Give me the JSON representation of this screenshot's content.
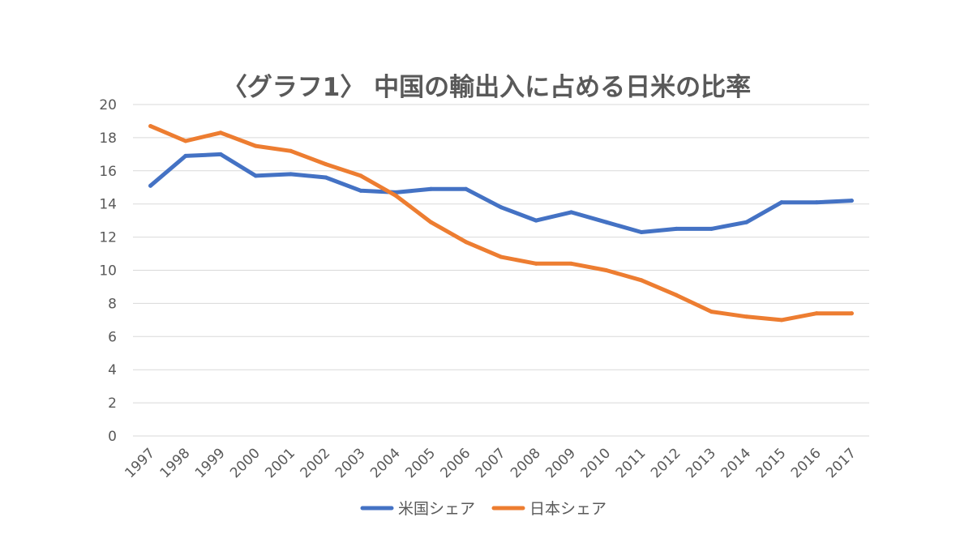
{
  "chart_data": {
    "type": "line",
    "title": "〈グラフ1〉 中国の輸出入に占める日米の比率",
    "xlabel": "",
    "ylabel": "",
    "ylim": [
      0,
      20
    ],
    "yticks": [
      0,
      2,
      4,
      6,
      8,
      10,
      12,
      14,
      16,
      18,
      20
    ],
    "categories": [
      "1997",
      "1998",
      "1999",
      "2000",
      "2001",
      "2002",
      "2003",
      "2004",
      "2005",
      "2006",
      "2007",
      "2008",
      "2009",
      "2010",
      "2011",
      "2012",
      "2013",
      "2014",
      "2015",
      "2016",
      "2017"
    ],
    "grid": true,
    "legend_position": "bottom",
    "series": [
      {
        "name": "米国シェア",
        "color": "#4472c4",
        "values": [
          15.1,
          16.9,
          17.0,
          15.7,
          15.8,
          15.6,
          14.8,
          14.7,
          14.9,
          14.9,
          13.8,
          13.0,
          13.5,
          12.9,
          12.3,
          12.5,
          12.5,
          12.9,
          14.1,
          14.1,
          14.2
        ]
      },
      {
        "name": "日本シェア",
        "color": "#ed7d31",
        "values": [
          18.7,
          17.8,
          18.3,
          17.5,
          17.2,
          16.4,
          15.7,
          14.5,
          12.9,
          11.7,
          10.8,
          10.4,
          10.4,
          10.0,
          9.4,
          8.5,
          7.5,
          7.2,
          7.0,
          7.4,
          7.4
        ]
      }
    ]
  }
}
